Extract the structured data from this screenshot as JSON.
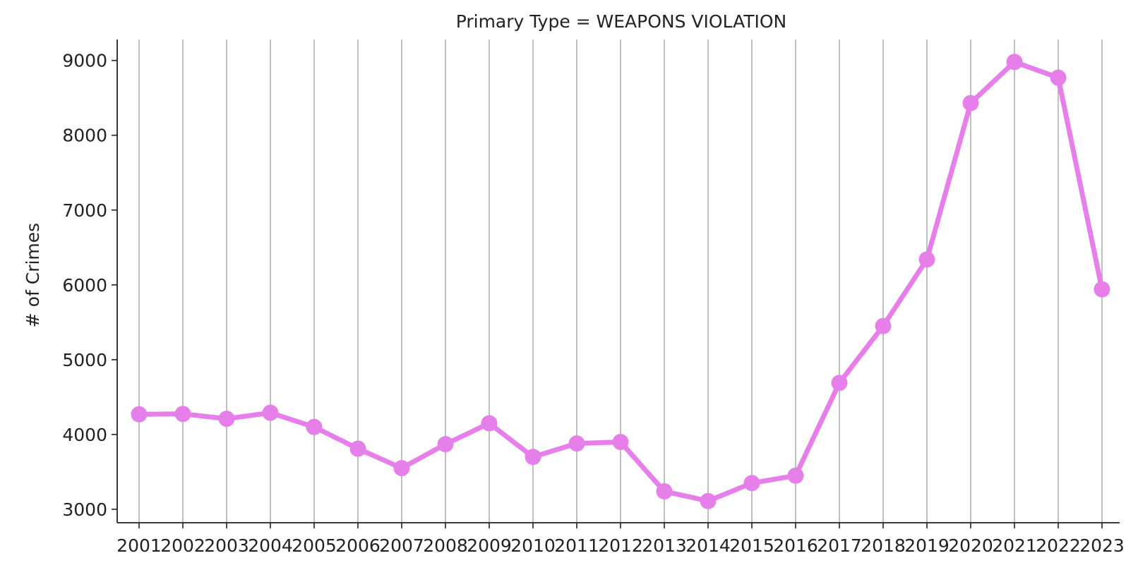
{
  "chart_data": {
    "type": "line",
    "title": "Primary Type = WEAPONS VIOLATION",
    "xlabel": "",
    "ylabel": "# of Crimes",
    "categories": [
      "2001",
      "2002",
      "2003",
      "2004",
      "2005",
      "2006",
      "2007",
      "2008",
      "2009",
      "2010",
      "2011",
      "2012",
      "2013",
      "2014",
      "2015",
      "2016",
      "2017",
      "2018",
      "2019",
      "2020",
      "2021",
      "2022",
      "2023"
    ],
    "series": [
      {
        "values": [
          4270,
          4275,
          4210,
          4290,
          4100,
          3810,
          3550,
          3870,
          4150,
          3700,
          3880,
          3900,
          3240,
          3110,
          3350,
          3450,
          4690,
          5450,
          6340,
          8430,
          8980,
          8770,
          5940
        ],
        "color": "#e67fe9"
      }
    ],
    "ylim": [
      2820,
      9280
    ],
    "yticks": [
      3000,
      4000,
      5000,
      6000,
      7000,
      8000,
      9000
    ],
    "grid": "vertical"
  }
}
